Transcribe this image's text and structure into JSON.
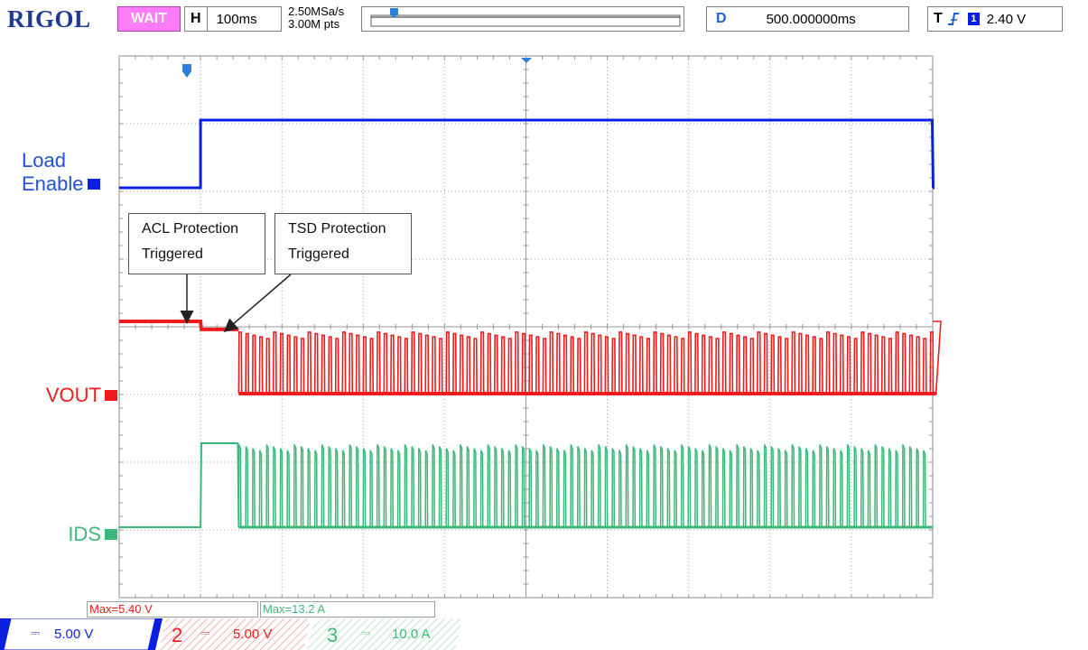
{
  "header": {
    "brand": "RIGOL",
    "status": "WAIT",
    "timebase_tag": "H",
    "timebase_value": "100ms",
    "sample_rate": "2.50MSa/s",
    "memory_depth": "3.00M pts",
    "delay_tag": "D",
    "delay_value": "500.000000ms",
    "trigger_tag": "T",
    "trigger_source": "1",
    "trigger_level": "2.40 V"
  },
  "channel_labels": {
    "ch1_line1": "Load",
    "ch1_line2": "Enable",
    "ch2": "VOUT",
    "ch3": "IDS"
  },
  "annotations": {
    "acl_line1": "ACL Protection",
    "acl_line2": "Triggered",
    "tsd_line1": "TSD Protection",
    "tsd_line2": "Triggered"
  },
  "measurements": {
    "m1": "Max=5.40 V",
    "m2": "Max=13.2 A"
  },
  "channels": [
    {
      "number": "1",
      "scale": "5.00 V",
      "color": "#0a1fe0"
    },
    {
      "number": "2",
      "scale": "5.00 V",
      "color": "#ee1c1c"
    },
    {
      "number": "3",
      "scale": "10.0 A",
      "color": "#3cb878"
    }
  ],
  "colors": {
    "brand": "#1f3a93",
    "status_bg": "#ff7cf7",
    "grid": "#a0a0a0",
    "ch1": "#0a1fe0",
    "ch2": "#ee1c1c",
    "ch3": "#3cb878"
  },
  "chart_data": {
    "type": "line",
    "title": "",
    "xlabel": "",
    "ylabel": "",
    "x_unit": "ms",
    "xlim": [
      0,
      1000
    ],
    "x_divisions": 10,
    "y_divisions": 8,
    "grid": true,
    "series": [
      {
        "name": "Load Enable",
        "channel": 1,
        "kind": "step",
        "low": 0,
        "high": 5.4,
        "rise_ms": 100,
        "fall_ms": 1000
      },
      {
        "name": "VOUT",
        "channel": 2,
        "kind": "protection",
        "high": 5.4,
        "acl_ms": 100,
        "acl_level": 4.8,
        "tsd_ms": 147,
        "pulses_end_ms": 1010,
        "pulse_period_ms": 8.5,
        "pulse_low": 0,
        "pulse_high": 4.6
      },
      {
        "name": "IDS",
        "channel": 3,
        "kind": "protection",
        "low": 0,
        "acl_ms": 100,
        "acl_level": 13.2,
        "tsd_ms": 147,
        "pulses_end_ms": 1000,
        "pulse_period_ms": 8.5,
        "pulse_high": 13
      }
    ]
  }
}
